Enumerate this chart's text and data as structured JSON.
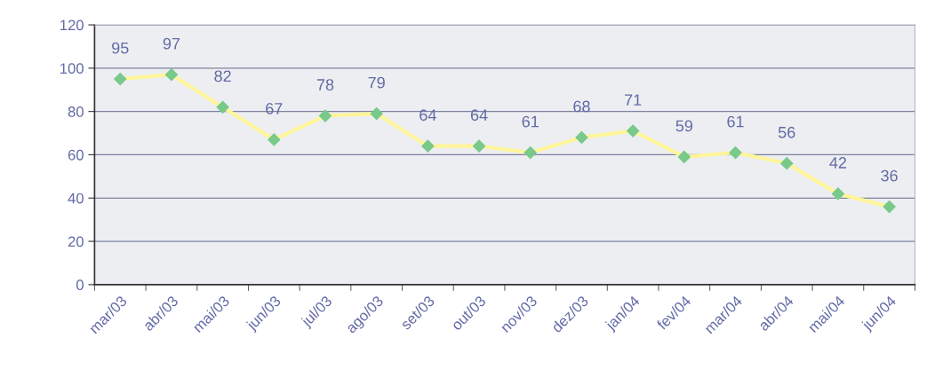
{
  "chart_data": {
    "type": "line",
    "categories": [
      "mar/03",
      "abr/03",
      "mai/03",
      "jun/03",
      "jul/03",
      "ago/03",
      "set/03",
      "out/03",
      "nov/03",
      "dez/03",
      "jan/04",
      "fev/04",
      "mar/04",
      "abr/04",
      "mai/04",
      "jun/04"
    ],
    "series": [
      {
        "color": "#fff59a",
        "colors": [
          "#78c98a",
          "#78c98a",
          "#78c98a",
          "#78c98a",
          "#78c98a",
          "#78c98a",
          "#78c98a",
          "#78c98a",
          "#78c98a",
          "#78c98a",
          "#78c98a",
          "#78c98a",
          "#78c98a",
          "#78c98a",
          "#78c98a",
          "#78c98a"
        ],
        "values": [
          95,
          97,
          82,
          67,
          78,
          79,
          64,
          64,
          61,
          68,
          71,
          59,
          61,
          56,
          42,
          36
        ]
      }
    ],
    "ylim": [
      0,
      120
    ],
    "yticks": [
      0,
      20,
      40,
      60,
      80,
      100,
      120
    ],
    "grid": "y",
    "marker": "diamond",
    "line_style": "solid",
    "data_labels": true
  }
}
